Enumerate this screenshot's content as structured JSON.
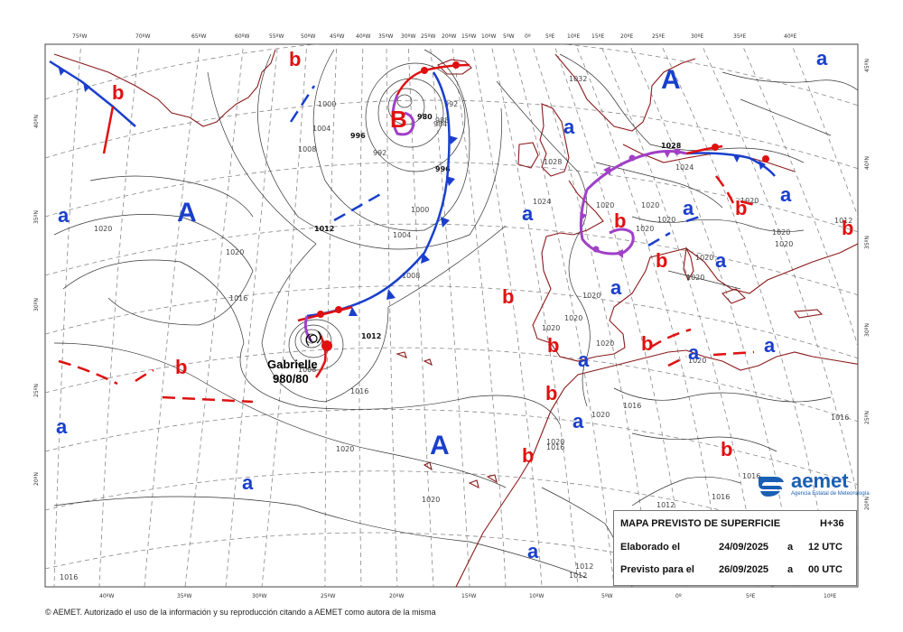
{
  "map": {
    "top_lon_labels": [
      "75ºW",
      "70ºW",
      "65ºW",
      "60ºW",
      "55ºW",
      "50ºW",
      "45ºW",
      "40ºW",
      "35ºW",
      "30ºW",
      "25ºW",
      "20ºW",
      "15ºW",
      "10ºW",
      "5ºW",
      "0º",
      "5ºE",
      "10ºE",
      "15ºE",
      "20ºE",
      "25ºE",
      "30ºE",
      "35ºE",
      "40ºE"
    ],
    "bottom_lon_labels": [
      "40ºW",
      "35ºW",
      "30ºW",
      "25ºW",
      "20ºW",
      "15ºW",
      "10ºW",
      "5ºW",
      "0º",
      "5ºE",
      "10ºE"
    ],
    "left_lat_labels": [
      "40ºN",
      "35ºN",
      "30ºN",
      "25ºN",
      "20ºN"
    ],
    "right_lat_labels": [
      "45ºN",
      "40ºN",
      "35ºN",
      "30ºN",
      "25ºN",
      "20ºN"
    ],
    "isobar_labels": [
      "980",
      "984",
      "988",
      "992",
      "996",
      "1000",
      "1004",
      "1008",
      "1012",
      "1016",
      "1020",
      "1024",
      "1028",
      "1032"
    ],
    "highs_major": [
      "A",
      "A",
      "A"
    ],
    "highs_minor": [
      "a",
      "a",
      "a",
      "a",
      "a",
      "a",
      "a",
      "a",
      "a",
      "a",
      "a",
      "a",
      "a",
      "a",
      "a",
      "a",
      "a",
      "a"
    ],
    "lows_major": [
      "B"
    ],
    "lows_minor": [
      "b",
      "b",
      "b",
      "b",
      "b",
      "b",
      "b",
      "b",
      "b",
      "b",
      "b",
      "b",
      "b",
      "b",
      "b",
      "b"
    ],
    "storm_name": "Gabrielle",
    "storm_pressure": "980/80"
  },
  "info": {
    "title": "MAPA PREVISTO DE SUPERFICIE",
    "step": "H+36",
    "made_label": "Elaborado el",
    "made_date": "24/09/2025",
    "made_sep": "a",
    "made_time": "12 UTC",
    "valid_label": "Previsto para el",
    "valid_date": "26/09/2025",
    "valid_sep": "a",
    "valid_time": "00 UTC"
  },
  "logo": {
    "name": "aemet",
    "subtitle": "Agencia Estatal de Meteorología"
  },
  "footer": {
    "copyright": "© AEMET. Autorizado el uso de la información y su reproducción citando a AEMET como autora de la misma"
  },
  "colors": {
    "warm_front": "#e01010",
    "cold_front": "#1a3fcc",
    "occluded_front": "#a040c8",
    "coast": "#8b1a1a",
    "high": "#1a3fcc",
    "low": "#e01010"
  }
}
